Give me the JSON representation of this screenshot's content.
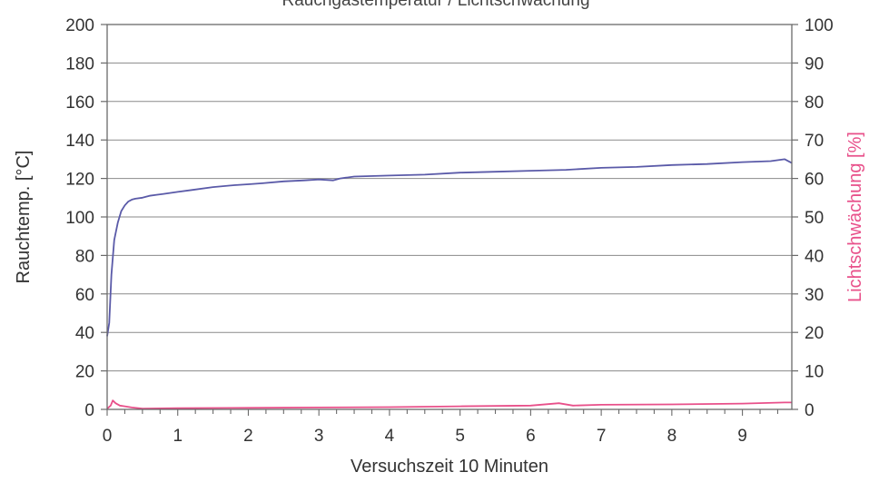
{
  "chart_data": {
    "type": "line",
    "title": "",
    "top_cutoff_text": "Rauchgastemperatur / Lichtschwächung",
    "xlabel": "Versuchszeit 10 Minuten",
    "ylabel_left": "Rauchtemp. [°C]",
    "ylabel_right": "Lichtschwächung [%]",
    "xlim": [
      0,
      9.7
    ],
    "ylim_left": [
      0,
      200
    ],
    "ylim_right": [
      0,
      100
    ],
    "x_ticks": [
      "0",
      "1",
      "2",
      "3",
      "4",
      "5",
      "6",
      "7",
      "8",
      "9"
    ],
    "y_ticks_left": [
      "0",
      "20",
      "40",
      "60",
      "80",
      "100",
      "120",
      "140",
      "160",
      "180",
      "200"
    ],
    "y_ticks_right": [
      "0",
      "10",
      "20",
      "30",
      "40",
      "50",
      "60",
      "70",
      "80",
      "90",
      "100"
    ],
    "grid": true,
    "series": [
      {
        "axis": "left",
        "color": "#5a5aa8",
        "x": [
          0,
          0.03,
          0.06,
          0.1,
          0.15,
          0.2,
          0.25,
          0.3,
          0.35,
          0.4,
          0.5,
          0.6,
          0.7,
          0.8,
          1.0,
          1.2,
          1.5,
          1.8,
          2.0,
          2.2,
          2.5,
          2.8,
          3.0,
          3.2,
          3.3,
          3.5,
          4.0,
          4.5,
          5.0,
          5.5,
          6.0,
          6.5,
          7.0,
          7.5,
          8.0,
          8.5,
          9.0,
          9.4,
          9.6,
          9.7
        ],
        "values": [
          38,
          45,
          70,
          88,
          97,
          103,
          106,
          108,
          109,
          109.5,
          110,
          111,
          111.5,
          112,
          113,
          114,
          115.5,
          116.5,
          117,
          117.5,
          118.5,
          119,
          119.5,
          119,
          120,
          121,
          121.5,
          122,
          123,
          123.5,
          124,
          124.5,
          125.5,
          126,
          127,
          127.5,
          128.5,
          129,
          130,
          128
        ]
      },
      {
        "axis": "right",
        "color": "#e8508a",
        "x": [
          0,
          0.05,
          0.08,
          0.12,
          0.18,
          0.25,
          0.35,
          0.5,
          1.0,
          2.0,
          3.0,
          4.0,
          5.0,
          6.0,
          6.4,
          6.6,
          7.0,
          8.0,
          9.0,
          9.6,
          9.7
        ],
        "values": [
          0.2,
          1.0,
          2.3,
          1.6,
          1.0,
          0.8,
          0.5,
          0.2,
          0.3,
          0.4,
          0.5,
          0.6,
          0.8,
          1.0,
          1.6,
          1.0,
          1.2,
          1.3,
          1.5,
          1.8,
          1.8
        ]
      }
    ]
  }
}
